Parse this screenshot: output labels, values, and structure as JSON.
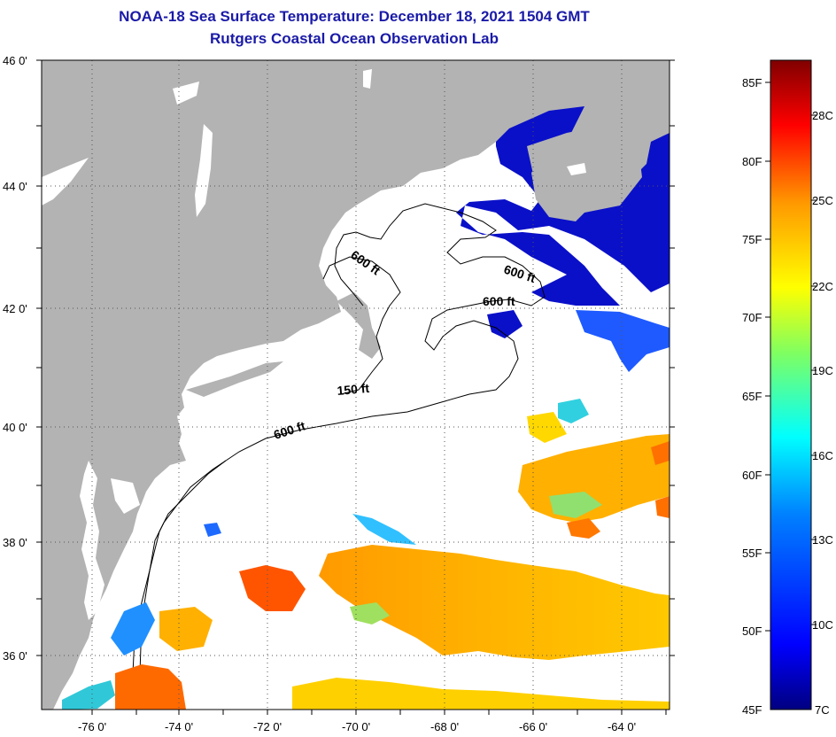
{
  "title": "NOAA-18 Sea Surface Temperature:  December 18, 2021 1504 GMT",
  "subtitle": "Rutgers Coastal Ocean Observation Lab",
  "lat_labels": [
    "46 0'",
    "44 0'",
    "42 0'",
    "40 0'",
    "38 0'",
    "36 0'"
  ],
  "lon_labels": [
    "-76 0'",
    "-74 0'",
    "-72 0'",
    "-70 0'",
    "-68 0'",
    "-66 0'",
    "-64 0'"
  ],
  "isobath_labels": [
    "600 ft",
    "600 ft",
    "600 ft",
    "150 ft",
    "600 ft"
  ],
  "colorbar": {
    "f_labels": [
      "85F",
      "80F",
      "75F",
      "70F",
      "65F",
      "60F",
      "55F",
      "50F",
      "45F"
    ],
    "c_labels": [
      "28C",
      "25C",
      "22C",
      "19C",
      "16C",
      "13C",
      "10C",
      "7C"
    ],
    "range_f": [
      45,
      87
    ],
    "colors": [
      "#000080",
      "#0000ff",
      "#0080ff",
      "#00ffff",
      "#80ff80",
      "#ffff00",
      "#ff8000",
      "#ff0000",
      "#800000"
    ]
  },
  "colors": {
    "land": "#b3b3b3",
    "ocean_no_data": "#ffffff",
    "cold_water": "#0a10c8",
    "warm_water": "#ff8c00"
  }
}
